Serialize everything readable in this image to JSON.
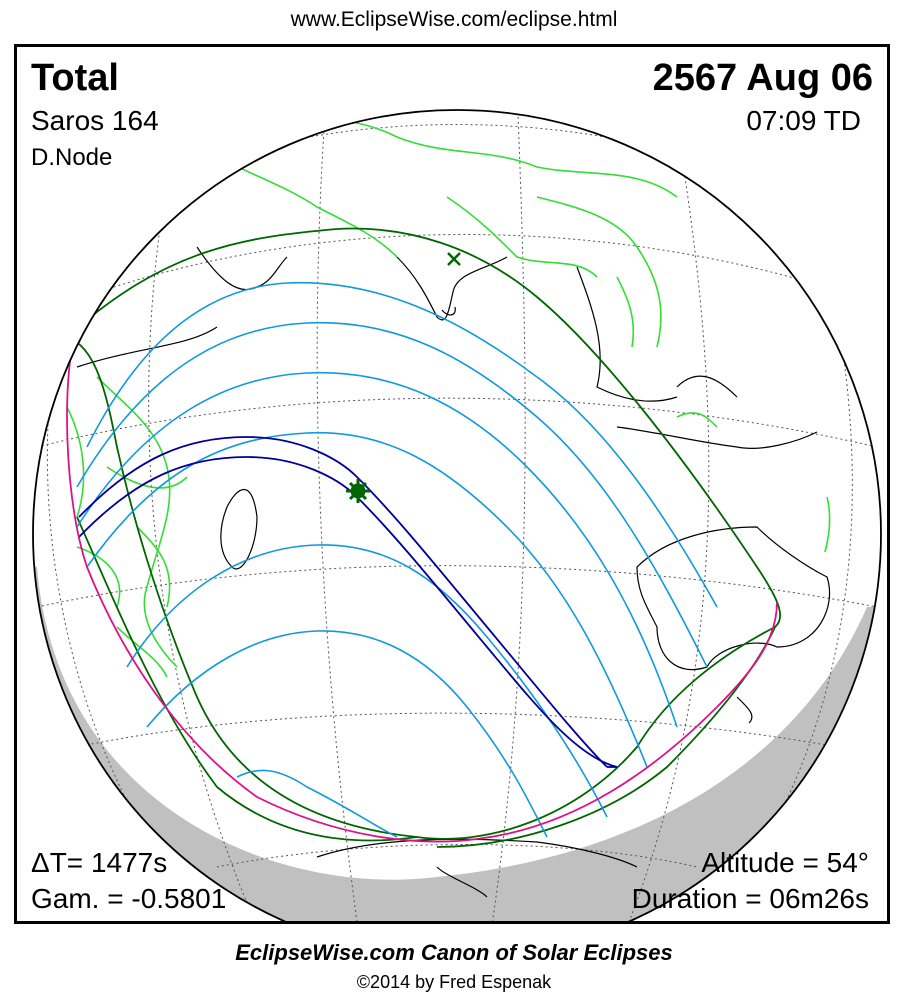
{
  "header": {
    "url": "www.EclipseWise.com/eclipse.html"
  },
  "eclipse": {
    "type": "Total",
    "date": "2567 Aug 06",
    "saros": "Saros 164",
    "time": "07:09 TD",
    "node": "D.Node",
    "delta_t": "ΔT=   1477s",
    "gamma": "Gam. = -0.5801",
    "altitude": "Altitude = 54°",
    "duration": "Duration = 06m26s"
  },
  "colors": {
    "continents": "#33dd33",
    "coastline": "#000000",
    "penumbra_limits": "#006600",
    "umbra_path": "#000099",
    "partial_lines": "#1199dd",
    "rise_set_curve": "#dd1188",
    "night_shade": "#c0c0c0"
  },
  "footer": {
    "title": "EclipseWise.com Canon of Solar Eclipses",
    "copyright": "©2014 by Fred Espenak"
  }
}
